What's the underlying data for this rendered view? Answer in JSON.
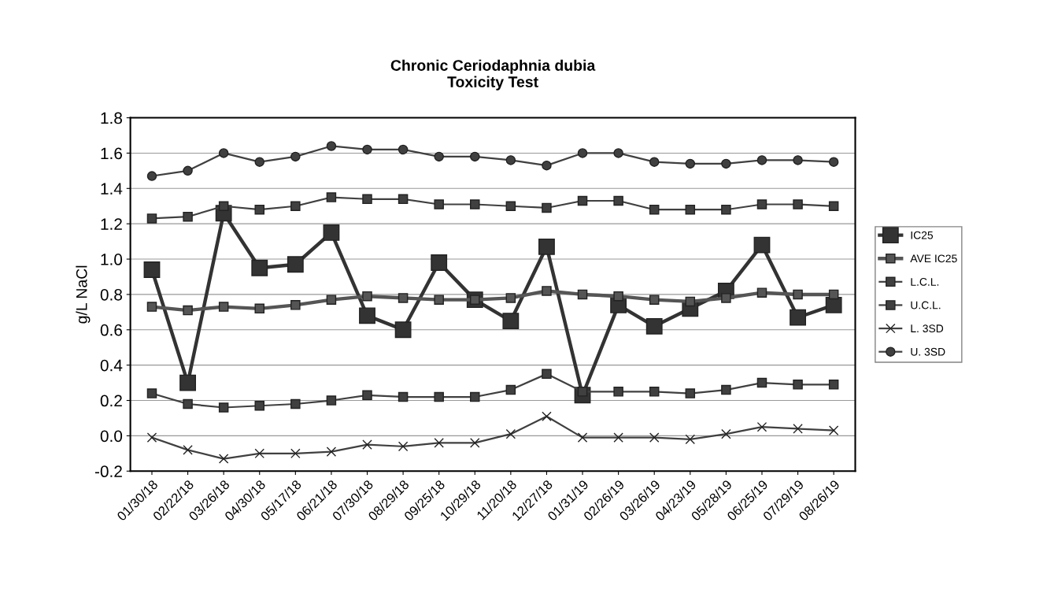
{
  "chart_data": {
    "type": "line",
    "title": "Chronic Ceriodaphnia dubia\nToxicity Test",
    "ylabel": "g/L NaCl",
    "categories": [
      "01/30/18",
      "02/22/18",
      "03/26/18",
      "04/30/18",
      "05/17/18",
      "06/21/18",
      "07/30/18",
      "08/29/18",
      "09/25/18",
      "10/29/18",
      "11/20/18",
      "12/27/18",
      "01/31/19",
      "02/26/19",
      "03/26/19",
      "04/23/19",
      "05/28/19",
      "06/25/19",
      "07/29/19",
      "08/26/19"
    ],
    "series": [
      {
        "name": "IC25",
        "color": "#333333",
        "marker": "square",
        "values": [
          0.94,
          0.3,
          1.26,
          0.95,
          0.97,
          1.15,
          0.68,
          0.6,
          0.98,
          0.77,
          0.65,
          1.07,
          0.23,
          0.74,
          0.62,
          0.72,
          0.82,
          1.08,
          0.67,
          0.74
        ]
      },
      {
        "name": "AVE IC25",
        "color": "#555555",
        "marker": "square",
        "values": [
          0.73,
          0.71,
          0.73,
          0.72,
          0.74,
          0.77,
          0.79,
          0.78,
          0.77,
          0.77,
          0.78,
          0.82,
          0.8,
          0.79,
          0.77,
          0.76,
          0.78,
          0.81,
          0.8,
          0.8
        ]
      },
      {
        "name": "L.C.L.",
        "color": "#404040",
        "marker": "square",
        "values": [
          0.24,
          0.18,
          0.16,
          0.17,
          0.18,
          0.2,
          0.23,
          0.22,
          0.22,
          0.22,
          0.26,
          0.35,
          0.25,
          0.25,
          0.25,
          0.24,
          0.26,
          0.3,
          0.29,
          0.29
        ]
      },
      {
        "name": "U.C.L.",
        "color": "#404040",
        "marker": "square",
        "values": [
          1.23,
          1.24,
          1.3,
          1.28,
          1.3,
          1.35,
          1.34,
          1.34,
          1.31,
          1.31,
          1.3,
          1.29,
          1.33,
          1.33,
          1.28,
          1.28,
          1.28,
          1.31,
          1.31,
          1.3
        ]
      },
      {
        "name": "L. 3SD",
        "color": "#404040",
        "marker": "cross",
        "values": [
          -0.01,
          -0.08,
          -0.13,
          -0.1,
          -0.1,
          -0.09,
          -0.05,
          -0.06,
          -0.04,
          -0.04,
          0.01,
          0.11,
          -0.01,
          -0.01,
          -0.01,
          -0.02,
          0.01,
          0.05,
          0.04,
          0.03
        ]
      },
      {
        "name": "U. 3SD",
        "color": "#404040",
        "marker": "circle",
        "values": [
          1.47,
          1.5,
          1.6,
          1.55,
          1.58,
          1.64,
          1.62,
          1.62,
          1.58,
          1.58,
          1.56,
          1.53,
          1.6,
          1.6,
          1.55,
          1.54,
          1.54,
          1.56,
          1.56,
          1.55
        ]
      }
    ],
    "ylim": [
      -0.2,
      1.8
    ],
    "yticks": [
      {
        "value": -0.2,
        "label": "-0.2"
      },
      {
        "value": 0,
        "label": "0.0"
      },
      {
        "value": 0.2,
        "label": "0.2"
      },
      {
        "value": 0.4,
        "label": "0.4"
      },
      {
        "value": 0.6,
        "label": "0.6"
      },
      {
        "value": 0.8,
        "label": "0.8"
      },
      {
        "value": 1.0,
        "label": "1.0"
      },
      {
        "value": 1.2,
        "label": "1.2"
      },
      {
        "value": 1.4,
        "label": "1.4"
      },
      {
        "value": 1.6,
        "label": "1.6"
      },
      {
        "value": 1.8,
        "label": "1.8"
      }
    ],
    "grid": "y",
    "legend": "right",
    "line_style": "solid"
  }
}
